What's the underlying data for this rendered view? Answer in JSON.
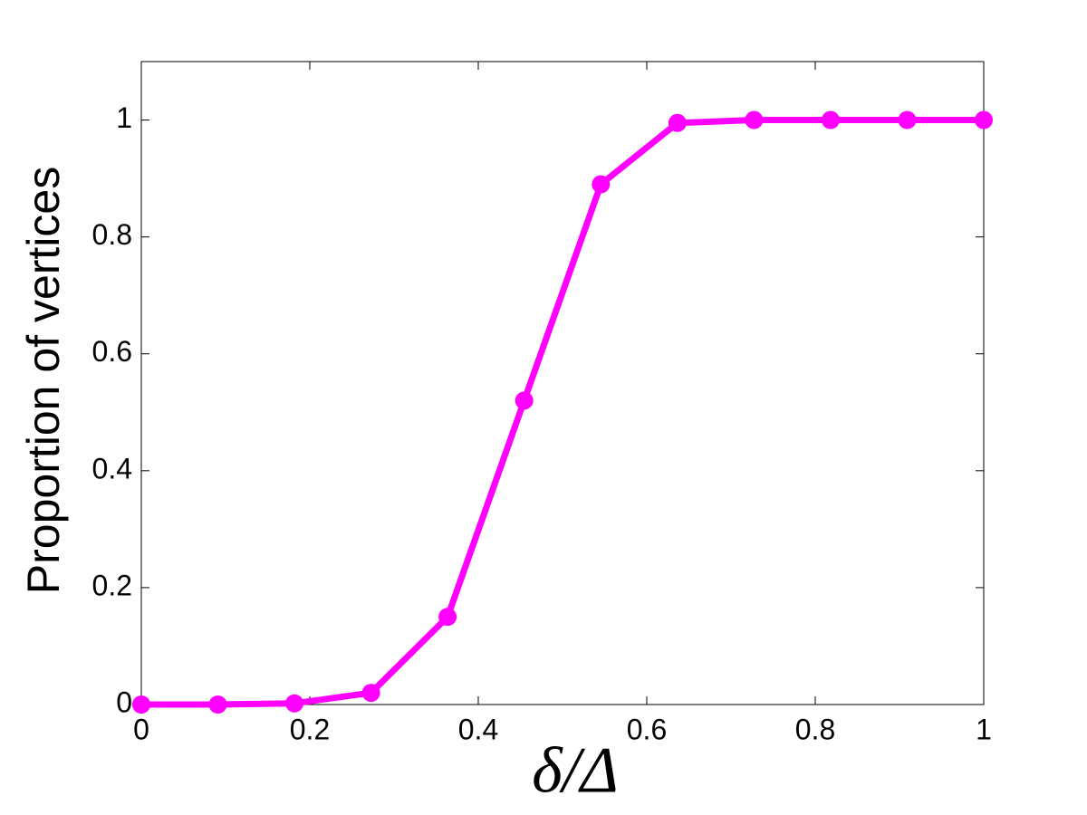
{
  "chart_data": {
    "type": "line",
    "x_label": "δ/Δ",
    "y_label": "Proportion of vertices",
    "x": [
      0,
      0.0909,
      0.1818,
      0.2727,
      0.3636,
      0.4545,
      0.5455,
      0.6364,
      0.7273,
      0.8182,
      0.9091,
      1
    ],
    "series": [
      {
        "color": "#ff00ff",
        "values": [
          0,
          0,
          0.002,
          0.02,
          0.15,
          0.52,
          0.89,
          0.995,
          1,
          1,
          1,
          1
        ]
      }
    ],
    "xlim": [
      0,
      1
    ],
    "ylim": [
      0,
      1.1
    ],
    "xticks": [
      0,
      0.2,
      0.4,
      0.6,
      0.8,
      1
    ],
    "yticks": [
      0,
      0.2,
      0.4,
      0.6,
      0.8,
      1
    ],
    "grid": false
  }
}
